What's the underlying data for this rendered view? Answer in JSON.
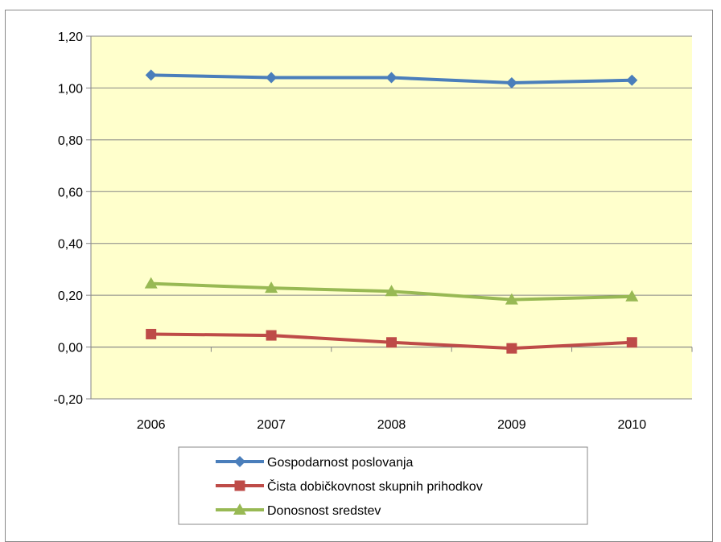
{
  "chart_data": {
    "type": "line",
    "categories": [
      "2006",
      "2007",
      "2008",
      "2009",
      "2010"
    ],
    "ylim": [
      -0.2,
      1.2
    ],
    "yticks": [
      -0.2,
      0.0,
      0.2,
      0.4,
      0.6,
      0.8,
      1.0,
      1.2
    ],
    "ytick_labels": [
      "-0,20",
      "0,00",
      "0,20",
      "0,40",
      "0,60",
      "0,80",
      "1,00",
      "1,20"
    ],
    "grid": true,
    "legend_position": "bottom",
    "plot_background": "#FFFFCC",
    "series": [
      {
        "name": "Gospodarnost poslovanja",
        "values": [
          1.05,
          1.04,
          1.04,
          1.02,
          1.03
        ],
        "color": "#4A7EBB",
        "marker": "diamond"
      },
      {
        "name": "Čista dobičkovnost skupnih prihodkov",
        "values": [
          0.05,
          0.045,
          0.018,
          -0.005,
          0.018
        ],
        "color": "#BE4B48",
        "marker": "square"
      },
      {
        "name": "Donosnost sredstev",
        "values": [
          0.245,
          0.228,
          0.215,
          0.183,
          0.195
        ],
        "color": "#98B954",
        "marker": "triangle"
      }
    ]
  }
}
